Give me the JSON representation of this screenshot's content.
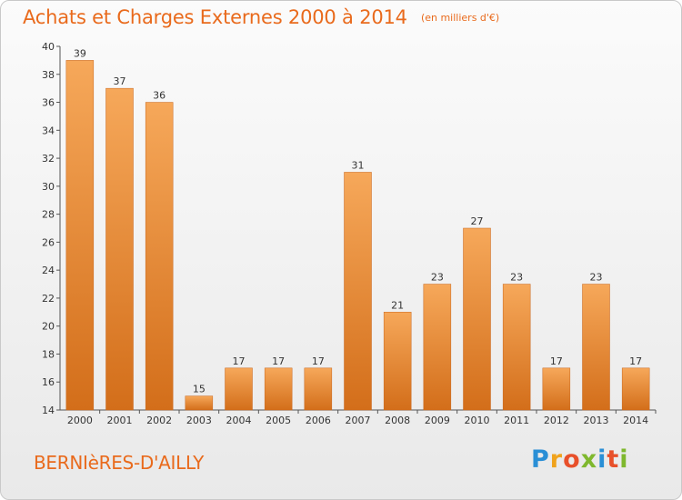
{
  "header": {
    "title": "Achats et Charges Externes 2000 à 2014",
    "subtitle": "(en milliers d'€)"
  },
  "footer": {
    "commune": "BERNIèRES-D'AILLY",
    "logo": {
      "letters": [
        "P",
        "r",
        "o",
        "x",
        "i",
        "t",
        "i"
      ],
      "colors": [
        "#2a8fd6",
        "#f0a31c",
        "#e8502a",
        "#7fb82e",
        "#2a8fd6",
        "#e8502a",
        "#7fb82e"
      ]
    }
  },
  "chart_data": {
    "type": "bar",
    "title": "Achats et Charges Externes 2000 à 2014",
    "subtitle": "(en milliers d'€)",
    "categories": [
      "2000",
      "2001",
      "2002",
      "2003",
      "2004",
      "2005",
      "2006",
      "2007",
      "2008",
      "2009",
      "2010",
      "2011",
      "2012",
      "2013",
      "2014"
    ],
    "values": [
      39,
      37,
      36,
      15,
      17,
      17,
      17,
      31,
      21,
      23,
      27,
      23,
      17,
      23,
      17
    ],
    "ylim": [
      14,
      40
    ],
    "yticks": [
      14,
      16,
      18,
      20,
      22,
      24,
      26,
      28,
      30,
      32,
      34,
      36,
      38,
      40
    ],
    "grid": false,
    "colors": {
      "bar_top": "#f6a85a",
      "bar_bottom": "#d36e1a",
      "label": "#333333",
      "axis": "#555555"
    }
  }
}
